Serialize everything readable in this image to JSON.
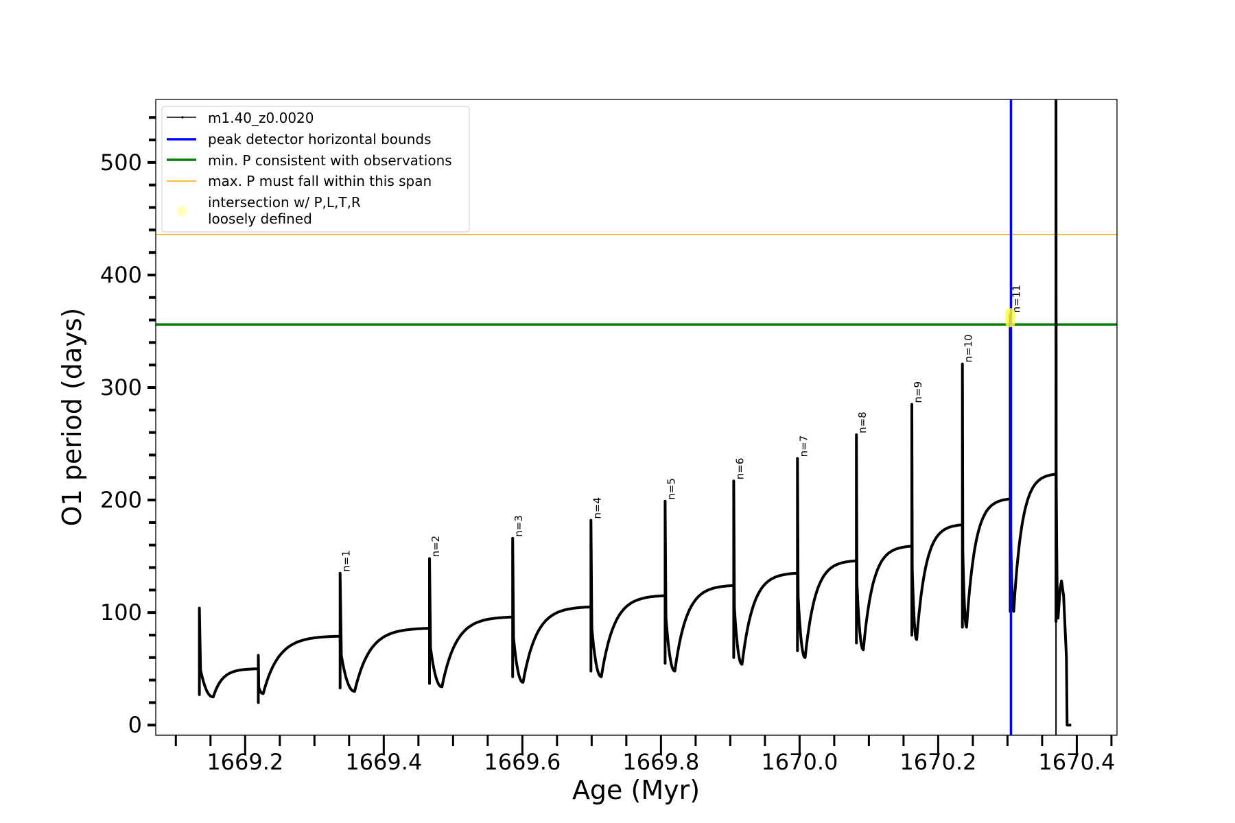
{
  "chart_data": {
    "type": "line",
    "xlabel": "Age (Myr)",
    "ylabel": "O1 period (days)",
    "xlim": [
      1669.071,
      1670.458
    ],
    "ylim": [
      -9,
      556
    ],
    "xticks": [
      "1669.2",
      "1669.4",
      "1669.6",
      "1669.8",
      "1670.0",
      "1670.2",
      "1670.4"
    ],
    "yticks": [
      "0",
      "100",
      "200",
      "300",
      "400",
      "500"
    ],
    "grid": false,
    "legend_position": "top-left",
    "legend": [
      {
        "label": "m1.40_z0.0020",
        "color": "#000000",
        "style": "line-dot"
      },
      {
        "label": "peak detector horizontal bounds",
        "color": "#0000ff",
        "style": "thick-line"
      },
      {
        "label": "min. P consistent with observations",
        "color": "#008000",
        "style": "thick-line"
      },
      {
        "label": "max. P must fall within this span",
        "color": "#ffa500",
        "style": "thin-line"
      },
      {
        "label": "intersection w/ P,L,T,R\nloosely defined",
        "color": "#ffff66",
        "style": "marker"
      }
    ],
    "series": [
      {
        "name": "m1.40_z0.0020",
        "color": "#000000",
        "start": {
          "age": 1669.134,
          "period": 61
        },
        "cycles": [
          {
            "label": "",
            "age": 1669.134,
            "plateau": 61,
            "peak": 104,
            "low": 27,
            "min": 25,
            "min_age": 1669.154
          },
          {
            "label": "",
            "age": 1669.219,
            "plateau": 50,
            "peak": 62,
            "low": 20,
            "min": 28,
            "min_age": 1669.226
          },
          {
            "label": "n=1",
            "age": 1669.337,
            "plateau": 79,
            "peak": 135,
            "low": 33,
            "min": 30,
            "min_age": 1669.358
          },
          {
            "label": "n=2",
            "age": 1669.466,
            "plateau": 86,
            "peak": 148,
            "low": 37,
            "min": 34,
            "min_age": 1669.484
          },
          {
            "label": "n=3",
            "age": 1669.586,
            "plateau": 96,
            "peak": 166,
            "low": 43,
            "min": 38,
            "min_age": 1669.601
          },
          {
            "label": "n=4",
            "age": 1669.699,
            "plateau": 105,
            "peak": 182,
            "low": 48,
            "min": 43,
            "min_age": 1669.714
          },
          {
            "label": "n=5",
            "age": 1669.806,
            "plateau": 115,
            "peak": 199,
            "low": 55,
            "min": 48,
            "min_age": 1669.82
          },
          {
            "label": "n=6",
            "age": 1669.905,
            "plateau": 124,
            "peak": 217,
            "low": 60,
            "min": 54,
            "min_age": 1669.917
          },
          {
            "label": "n=7",
            "age": 1669.997,
            "plateau": 135,
            "peak": 237,
            "low": 66,
            "min": 60,
            "min_age": 1670.008
          },
          {
            "label": "n=8",
            "age": 1670.082,
            "plateau": 146,
            "peak": 258,
            "low": 73,
            "min": 67,
            "min_age": 1670.092
          },
          {
            "label": "n=9",
            "age": 1670.162,
            "plateau": 159,
            "peak": 285,
            "low": 80,
            "min": 76,
            "min_age": 1670.169
          },
          {
            "label": "n=10",
            "age": 1670.235,
            "plateau": 178,
            "peak": 321,
            "low": 87,
            "min": 87,
            "min_age": 1670.241
          },
          {
            "label": "n=11",
            "age": 1670.304,
            "plateau": 201,
            "peak": 365,
            "low": 101,
            "min": 101,
            "min_age": 1670.309
          },
          {
            "label": "",
            "age": 1670.37,
            "plateau": 223,
            "peak": 556,
            "low": 92,
            "min": 95,
            "min_age": 1670.373
          }
        ],
        "tail": [
          [
            1670.376,
            122
          ],
          [
            1670.378,
            128
          ],
          [
            1670.381,
            115
          ],
          [
            1670.385,
            60
          ],
          [
            1670.386,
            0
          ],
          [
            1670.392,
            0
          ]
        ]
      }
    ],
    "vlines": [
      {
        "x": 1670.305,
        "color": "#0000ff"
      },
      {
        "x": 1670.37,
        "color": "#000000"
      }
    ],
    "hlines": [
      {
        "y": 436,
        "color": "#ffa500"
      },
      {
        "y": 356,
        "color": "#008000"
      }
    ],
    "markers": [
      {
        "x": 1670.304,
        "y": 362,
        "color": "#ffff33"
      }
    ]
  }
}
